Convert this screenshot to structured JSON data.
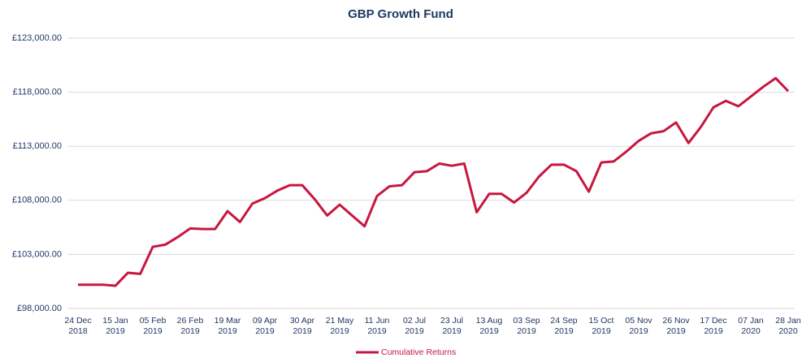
{
  "chart_data": {
    "type": "line",
    "title": "GBP Growth Fund",
    "categories": [
      "24 Dec\n2018",
      null,
      null,
      "15 Jan\n2019",
      null,
      null,
      "05 Feb\n2019",
      null,
      null,
      "26 Feb\n2019",
      null,
      null,
      "19 Mar\n2019",
      null,
      null,
      "09 Apr\n2019",
      null,
      null,
      "30 Apr\n2019",
      null,
      null,
      "21 May\n2019",
      null,
      null,
      "11 Jun\n2019",
      null,
      null,
      "02 Jul\n2019",
      null,
      null,
      "23 Jul\n2019",
      null,
      null,
      "13 Aug\n2019",
      null,
      null,
      "03 Sep\n2019",
      null,
      null,
      "24 Sep\n2019",
      null,
      null,
      "15 Oct\n2019",
      null,
      null,
      "05 Nov\n2019",
      null,
      null,
      "26 Nov\n2019",
      null,
      null,
      "17 Dec\n2019",
      null,
      null,
      "07 Jan\n2020",
      null,
      null,
      "28 Jan\n2020"
    ],
    "series": [
      {
        "name": "Cumulative Returns",
        "color": "#c8163e",
        "values": [
          100200,
          100200,
          100200,
          100100,
          101300,
          101200,
          103700,
          103900,
          104600,
          105400,
          105350,
          105350,
          107000,
          106000,
          107700,
          108200,
          108900,
          109400,
          109400,
          108100,
          106600,
          107600,
          106600,
          105600,
          108400,
          109300,
          109400,
          110600,
          110700,
          111400,
          111200,
          111400,
          106900,
          108600,
          108600,
          107800,
          108700,
          110200,
          111300,
          111300,
          110700,
          108800,
          111500,
          111600,
          112500,
          113500,
          114200,
          114400,
          115200,
          113300,
          114800,
          116600,
          117200,
          116700,
          117600,
          118500,
          119300,
          118100
        ]
      }
    ],
    "ylim": [
      98000,
      123000
    ],
    "yticks": [
      {
        "value": 98000,
        "label": "£98,000.00"
      },
      {
        "value": 103000,
        "label": "£103,000.00"
      },
      {
        "value": 108000,
        "label": "£108,000.00"
      },
      {
        "value": 113000,
        "label": "£113,000.00"
      },
      {
        "value": 118000,
        "label": "£118,000.00"
      },
      {
        "value": 123000,
        "label": "£123,000.00"
      }
    ],
    "grid": true,
    "legend": "bottom"
  }
}
